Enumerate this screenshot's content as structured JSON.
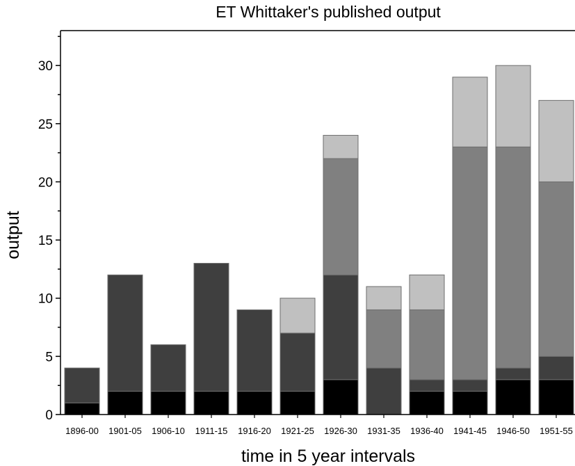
{
  "chart_data": {
    "type": "bar",
    "stacked": true,
    "title": "ET Whittaker's published output",
    "xlabel": "time in 5 year intervals",
    "ylabel": "output",
    "ylim": [
      0,
      33
    ],
    "yticks": [
      0,
      5,
      10,
      15,
      20,
      25,
      30
    ],
    "categories": [
      "1896-00",
      "1901-05",
      "1906-10",
      "1911-15",
      "1916-20",
      "1921-25",
      "1926-30",
      "1931-35",
      "1936-40",
      "1941-45",
      "1946-50",
      "1951-55"
    ],
    "series": [
      {
        "color": "#000000",
        "values": [
          1,
          2,
          2,
          2,
          2,
          2,
          3,
          0,
          2,
          2,
          3,
          3
        ]
      },
      {
        "color": "#3f3f3f",
        "values": [
          3,
          10,
          4,
          11,
          7,
          5,
          9,
          4,
          1,
          1,
          1,
          2
        ]
      },
      {
        "color": "#808080",
        "values": [
          0,
          0,
          0,
          0,
          0,
          0,
          10,
          5,
          6,
          20,
          19,
          15
        ]
      },
      {
        "color": "#c0c0c0",
        "values": [
          0,
          0,
          0,
          0,
          0,
          3,
          2,
          2,
          3,
          6,
          7,
          7
        ]
      }
    ],
    "grid": false,
    "legend": "none"
  }
}
